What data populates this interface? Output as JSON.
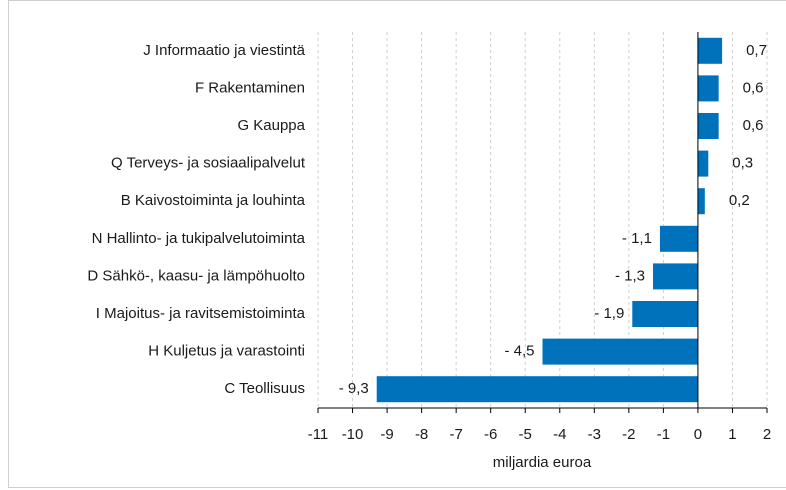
{
  "chart_data": {
    "type": "bar",
    "orientation": "horizontal",
    "categories": [
      "J Informaatio ja viestintä",
      "F Rakentaminen",
      "G Kauppa",
      "Q Terveys- ja sosiaalipalvelut",
      "B Kaivostoiminta ja louhinta",
      "N Hallinto- ja tukipalvelutoiminta",
      "D Sähkö-, kaasu- ja lämpöhuolto",
      "I Majoitus- ja ravitsemistoiminta",
      "H Kuljetus ja varastointi",
      "C Teollisuus"
    ],
    "values": [
      0.7,
      0.6,
      0.6,
      0.3,
      0.2,
      -1.1,
      -1.3,
      -1.9,
      -4.5,
      -9.3
    ],
    "value_labels": [
      "0,7",
      "0,6",
      "0,6",
      "0,3",
      "0,2",
      "- 1,1",
      "- 1,3",
      "- 1,9",
      "- 4,5",
      "- 9,3"
    ],
    "color": "#0072bc",
    "xlabel": "miljardia euroa",
    "xlim": [
      -11,
      2
    ],
    "xticks": [
      -11,
      -10,
      -9,
      -8,
      -7,
      -6,
      -5,
      -4,
      -3,
      -2,
      -1,
      0,
      1,
      2
    ],
    "grid": true
  }
}
